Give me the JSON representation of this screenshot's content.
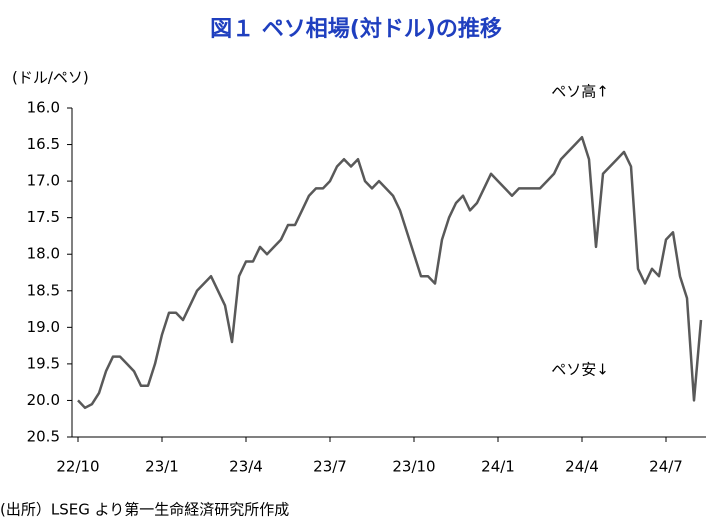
{
  "chart_data": {
    "type": "line",
    "title": "図１ ペソ相場(対ドル)の推移",
    "y_axis_label": "(ドル/ペソ)",
    "annotations": [
      "ペソ高↑",
      "ペソ安↓"
    ],
    "source": "(出所）LSEG より第一生命経済研究所作成",
    "color": "#595959",
    "invert_y": true,
    "grid": false,
    "categories": [
      "22/10",
      null,
      null,
      null,
      null,
      null,
      null,
      null,
      null,
      null,
      null,
      null,
      "23/1",
      null,
      null,
      null,
      null,
      null,
      null,
      null,
      null,
      null,
      null,
      null,
      "23/4",
      null,
      null,
      null,
      null,
      null,
      null,
      null,
      null,
      null,
      null,
      null,
      "23/7",
      null,
      null,
      null,
      null,
      null,
      null,
      null,
      null,
      null,
      null,
      null,
      "23/10",
      null,
      null,
      null,
      null,
      null,
      null,
      null,
      null,
      null,
      null,
      null,
      "24/1",
      null,
      null,
      null,
      null,
      null,
      null,
      null,
      null,
      null,
      null,
      null,
      "24/4",
      null,
      null,
      null,
      null,
      null,
      null,
      null,
      null,
      null,
      null,
      null,
      "24/7",
      null,
      null,
      null,
      null,
      null
    ],
    "values": [
      20.0,
      20.1,
      20.05,
      19.9,
      19.6,
      19.4,
      19.4,
      19.5,
      19.6,
      19.8,
      19.8,
      19.5,
      19.1,
      18.8,
      18.8,
      18.9,
      18.7,
      18.5,
      18.4,
      18.3,
      18.5,
      18.7,
      19.2,
      18.3,
      18.1,
      18.1,
      17.9,
      18.0,
      17.9,
      17.8,
      17.6,
      17.6,
      17.4,
      17.2,
      17.1,
      17.1,
      17.0,
      16.8,
      16.7,
      16.8,
      16.7,
      17.0,
      17.1,
      17.0,
      17.1,
      17.2,
      17.4,
      17.7,
      18.0,
      18.3,
      18.3,
      18.4,
      17.8,
      17.5,
      17.3,
      17.2,
      17.4,
      17.3,
      17.1,
      16.9,
      17.0,
      17.1,
      17.2,
      17.1,
      17.1,
      17.1,
      17.1,
      17.0,
      16.9,
      16.7,
      16.6,
      16.5,
      16.4,
      16.7,
      17.9,
      16.9,
      16.8,
      16.7,
      16.6,
      16.8,
      18.2,
      18.4,
      18.2,
      18.3,
      17.8,
      17.7,
      18.3,
      18.6,
      20.0,
      18.9
    ],
    "ylim": [
      16,
      20.5
    ],
    "yticks": [
      {
        "value": 16,
        "label": "16.0"
      },
      16.5,
      {
        "value": 17,
        "label": "17.0"
      },
      17.5,
      {
        "value": 18,
        "label": "18.0"
      },
      18.5,
      {
        "value": 19,
        "label": "19.0"
      },
      19.5,
      {
        "value": 20,
        "label": "20.0"
      },
      20.5
    ]
  }
}
